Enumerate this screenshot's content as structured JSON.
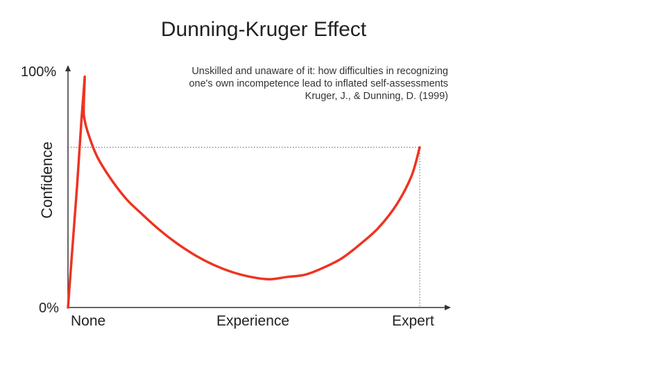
{
  "chart_data": {
    "type": "line",
    "title": "Dunning-Kruger Effect",
    "citation": [
      "Unskilled and unaware of it: how difficulties in recognizing",
      "one's own incompetence lead to inflated self-assessments",
      "Kruger, J., & Dunning, D. (1999)"
    ],
    "xlabel": "Experience",
    "ylabel": "Confidence",
    "x_tick_labels": [
      "None",
      "Experience",
      "Expert"
    ],
    "y_tick_labels": [
      "0%",
      "100%"
    ],
    "xlim": [
      0,
      100
    ],
    "ylim": [
      0,
      100
    ],
    "series": [
      {
        "color": "#ee3322",
        "points": [
          [
            0,
            0
          ],
          [
            1.2,
            25
          ],
          [
            2.5,
            52
          ],
          [
            3.7,
            80
          ],
          [
            4.6,
            98
          ],
          [
            4.3,
            85
          ],
          [
            4.5,
            80
          ],
          [
            5.5,
            74
          ],
          [
            8,
            64
          ],
          [
            12,
            54
          ],
          [
            16,
            46
          ],
          [
            20,
            40
          ],
          [
            25,
            33
          ],
          [
            30,
            27
          ],
          [
            35,
            22
          ],
          [
            40,
            18
          ],
          [
            45,
            15
          ],
          [
            50,
            13
          ],
          [
            55,
            12
          ],
          [
            60,
            13
          ],
          [
            65,
            14
          ],
          [
            70,
            17
          ],
          [
            75,
            21
          ],
          [
            80,
            27
          ],
          [
            85,
            34
          ],
          [
            90,
            44
          ],
          [
            94,
            56
          ],
          [
            96.2,
            68
          ]
        ]
      }
    ],
    "reference_point": [
      96.2,
      68
    ],
    "grid": false,
    "legend": "none"
  }
}
